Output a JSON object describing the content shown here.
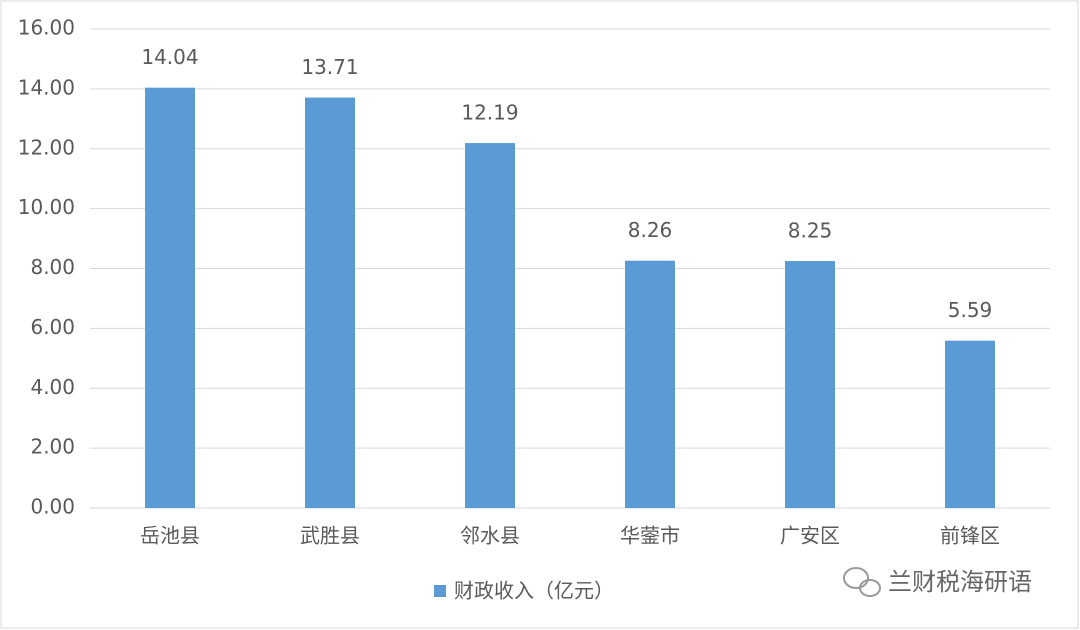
{
  "chart_data": {
    "type": "bar",
    "categories": [
      "岳池县",
      "武胜县",
      "邻水县",
      "华蓥市",
      "广安区",
      "前锋区"
    ],
    "series": [
      {
        "name": "财政收入（亿元）",
        "color": "#5b9bd5",
        "values": [
          14.04,
          13.71,
          12.19,
          8.26,
          8.25,
          5.59
        ]
      }
    ],
    "ylim": [
      0,
      16
    ],
    "yticks": [
      {
        "value": 0,
        "label": "0.00"
      },
      {
        "value": 2,
        "label": "2.00"
      },
      {
        "value": 4,
        "label": "4.00"
      },
      {
        "value": 6,
        "label": "6.00"
      },
      {
        "value": 8,
        "label": "8.00"
      },
      {
        "value": 10,
        "label": "10.00"
      },
      {
        "value": 12,
        "label": "12.00"
      },
      {
        "value": 14,
        "label": "14.00"
      },
      {
        "value": 16,
        "label": "16.00"
      }
    ],
    "grid": true,
    "legend": "bottom",
    "watermark": "兰财税海研语"
  }
}
